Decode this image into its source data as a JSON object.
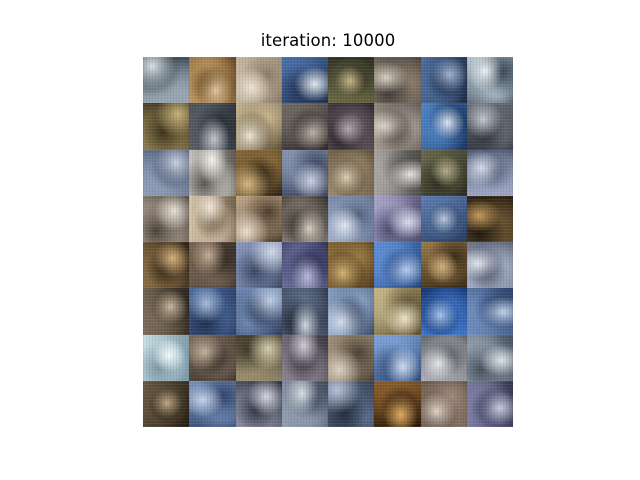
{
  "figure": {
    "title": "iteration: 10000"
  },
  "grid": {
    "rows": 8,
    "cols": 8,
    "tiles": [
      [
        "#9aa7b3",
        "#3e4a55",
        "#d9e2e6"
      ],
      [
        "#c19a5e",
        "#5a3b1d",
        "#e0c79a"
      ],
      [
        "#c8b9a2",
        "#8a7a66",
        "#efe6d6"
      ],
      [
        "#4a6fa8",
        "#1f2f4f",
        "#e4e9ef"
      ],
      [
        "#6b6a45",
        "#2a2a1f",
        "#c9b888"
      ],
      [
        "#8f7f6f",
        "#3e3a36",
        "#d9cfc2"
      ],
      [
        "#4d6e9e",
        "#1d2a44",
        "#9fb3cf"
      ],
      [
        "#b7c8d4",
        "#34414f",
        "#eef3f6"
      ],
      [
        "#8c7b4d",
        "#3b311c",
        "#c7b37a"
      ],
      [
        "#59616c",
        "#23282f",
        "#c4c8cc"
      ],
      [
        "#c7b58f",
        "#5f5138",
        "#f1ead8"
      ],
      [
        "#6f6863",
        "#2d2827",
        "#bdb2a8"
      ],
      [
        "#6a5d66",
        "#2a252b",
        "#b7a8ad"
      ],
      [
        "#a79e94",
        "#4e4741",
        "#ddd5cc"
      ],
      [
        "#4f86c9",
        "#1a3561",
        "#dce8f5"
      ],
      [
        "#6d727e",
        "#2c2f36",
        "#c6cad1"
      ],
      [
        "#8f9db8",
        "#4a5670",
        "#c9d1e0"
      ],
      [
        "#d8d6d2",
        "#5b5650",
        "#f6f4f0"
      ],
      [
        "#8a6a3a",
        "#2f2414",
        "#d8b880"
      ],
      [
        "#8794b3",
        "#3f4a63",
        "#cbd3e4"
      ],
      [
        "#a08d6e",
        "#4f4232",
        "#e0d1b4"
      ],
      [
        "#a9a6a3",
        "#4b4946",
        "#e9e7e4"
      ],
      [
        "#6b6a4d",
        "#292b1f",
        "#b3ae86"
      ],
      [
        "#9da8c6",
        "#505a73",
        "#d5dbea"
      ],
      [
        "#b6a99a",
        "#4a4138",
        "#e8e0d6"
      ],
      [
        "#d8c7ab",
        "#6b5a44",
        "#f2e9da"
      ],
      [
        "#c2a98a",
        "#4b3b2a",
        "#efe1cd"
      ],
      [
        "#837a6f",
        "#2f2b27",
        "#d9cfc3"
      ],
      [
        "#9fb0cf",
        "#4a5877",
        "#e2e8f3"
      ],
      [
        "#a8a5c9",
        "#4d4a6e",
        "#dedcef"
      ],
      [
        "#5e7fb3",
        "#253a5e",
        "#bccbe3"
      ],
      [
        "#6b5230",
        "#1e160c",
        "#c69a5a"
      ],
      [
        "#8a6d42",
        "#2a2014",
        "#d6b27a"
      ],
      [
        "#7a6656",
        "#2e2620",
        "#c7ad95"
      ],
      [
        "#8a9ac0",
        "#3c4762",
        "#d3dbeb"
      ],
      [
        "#6b6e9b",
        "#23264a",
        "#b8bbd8"
      ],
      [
        "#9c7a43",
        "#3b2a12",
        "#d9b674"
      ],
      [
        "#5f8fd6",
        "#22447f",
        "#b6cdef"
      ],
      [
        "#9a7a4a",
        "#3a2a16",
        "#d1b27f"
      ],
      [
        "#a7b1c6",
        "#4c5569",
        "#e3e7ef"
      ],
      [
        "#7d6e5a",
        "#2a241c",
        "#cbb89e"
      ],
      [
        "#4b6aa0",
        "#1b2b4a",
        "#a9bedf"
      ],
      [
        "#6f88b2",
        "#2e3e5c",
        "#c3d1e6"
      ],
      [
        "#5e6d88",
        "#222a38",
        "#d2d9e4"
      ],
      [
        "#8aa2c4",
        "#3c4c66",
        "#d6e0ee"
      ],
      [
        "#c7b88a",
        "#5a4e30",
        "#efe6c6"
      ],
      [
        "#3f78cc",
        "#143470",
        "#a9c6ef"
      ],
      [
        "#6f8fc0",
        "#2b416a",
        "#c2d3ea"
      ],
      [
        "#c9dfe6",
        "#7a98a6",
        "#f3fafc"
      ],
      [
        "#7a6a5a",
        "#2b241d",
        "#c6b39e"
      ],
      [
        "#9a8e6e",
        "#3e3826",
        "#d8cfae"
      ],
      [
        "#8b8592",
        "#3b3640",
        "#d2ced8"
      ],
      [
        "#a3917b",
        "#4a3f33",
        "#e0d4c4"
      ],
      [
        "#7ea2d8",
        "#304c7a",
        "#cfdef4"
      ],
      [
        "#aeb0b6",
        "#4f5157",
        "#e8e9ec"
      ],
      [
        "#9aa6b3",
        "#475260",
        "#dfe5ea"
      ],
      [
        "#6b5a44",
        "#241c12",
        "#c2aa86"
      ],
      [
        "#7892bf",
        "#2e4268",
        "#c8d6ec"
      ],
      [
        "#8a8ea0",
        "#2c2f3c",
        "#d4d6e0"
      ],
      [
        "#96a3b6",
        "#404b5c",
        "#dce2ea"
      ],
      [
        "#5e6f8e",
        "#232b3b",
        "#b8c4d8"
      ],
      [
        "#8a5e2a",
        "#2a180a",
        "#e0ad62"
      ],
      [
        "#a08a7a",
        "#4b3e35",
        "#e2d4c9"
      ],
      [
        "#7d7fa6",
        "#33354f",
        "#c9cbe2"
      ]
    ]
  }
}
